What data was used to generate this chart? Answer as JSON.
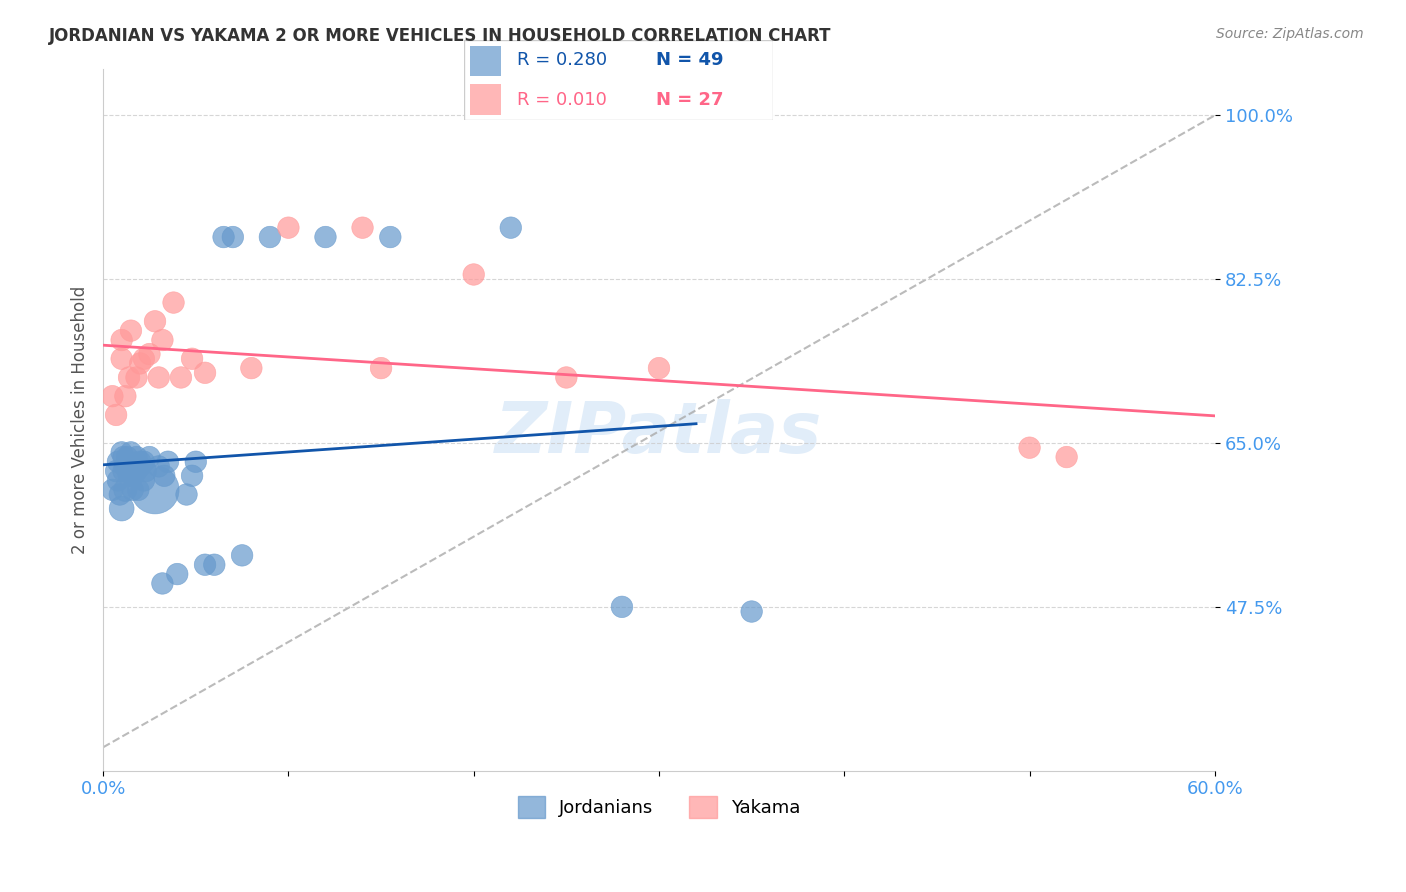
{
  "title": "JORDANIAN VS YAKAMA 2 OR MORE VEHICLES IN HOUSEHOLD CORRELATION CHART",
  "source": "Source: ZipAtlas.com",
  "ylabel": "2 or more Vehicles in Household",
  "xlim": [
    0.0,
    0.6
  ],
  "ylim": [
    0.3,
    1.05
  ],
  "yticks": [
    0.475,
    0.65,
    0.825,
    1.0
  ],
  "ytick_labels": [
    "47.5%",
    "65.0%",
    "82.5%",
    "100.0%"
  ],
  "xticks": [
    0.0,
    0.1,
    0.2,
    0.3,
    0.4,
    0.5,
    0.6
  ],
  "xtick_labels": [
    "0.0%",
    "",
    "",
    "",
    "",
    "",
    "60.0%"
  ],
  "legend_r_blue": "R = 0.280",
  "legend_n_blue": "N = 49",
  "legend_r_pink": "R = 0.010",
  "legend_n_pink": "N = 27",
  "blue_color": "#6699CC",
  "pink_color": "#FF9999",
  "blue_line_color": "#1155AA",
  "pink_line_color": "#FF6688",
  "axis_label_color": "#4499EE",
  "watermark": "ZIPatlas",
  "jordanians_x": [
    0.005,
    0.007,
    0.008,
    0.008,
    0.009,
    0.01,
    0.01,
    0.011,
    0.011,
    0.012,
    0.012,
    0.013,
    0.013,
    0.014,
    0.014,
    0.015,
    0.015,
    0.016,
    0.016,
    0.017,
    0.018,
    0.018,
    0.019,
    0.02,
    0.02,
    0.022,
    0.022,
    0.023,
    0.025,
    0.028,
    0.03,
    0.032,
    0.033,
    0.035,
    0.04,
    0.045,
    0.048,
    0.05,
    0.055,
    0.06,
    0.065,
    0.07,
    0.075,
    0.09,
    0.12,
    0.155,
    0.22,
    0.28,
    0.35
  ],
  "jordanians_y": [
    0.6,
    0.62,
    0.63,
    0.61,
    0.595,
    0.64,
    0.58,
    0.635,
    0.62,
    0.625,
    0.6,
    0.625,
    0.635,
    0.63,
    0.615,
    0.62,
    0.64,
    0.6,
    0.615,
    0.62,
    0.635,
    0.62,
    0.6,
    0.625,
    0.63,
    0.63,
    0.61,
    0.62,
    0.635,
    0.6,
    0.625,
    0.5,
    0.615,
    0.63,
    0.51,
    0.595,
    0.615,
    0.63,
    0.52,
    0.52,
    0.87,
    0.87,
    0.53,
    0.87,
    0.87,
    0.87,
    0.88,
    0.475,
    0.47
  ],
  "jordanians_size": [
    30,
    30,
    30,
    30,
    30,
    30,
    40,
    30,
    30,
    30,
    35,
    30,
    30,
    30,
    30,
    30,
    30,
    30,
    30,
    30,
    30,
    30,
    30,
    30,
    30,
    30,
    30,
    30,
    30,
    150,
    30,
    30,
    30,
    30,
    30,
    30,
    30,
    30,
    30,
    30,
    30,
    30,
    30,
    30,
    30,
    30,
    30,
    30,
    30
  ],
  "yakama_x": [
    0.005,
    0.007,
    0.01,
    0.01,
    0.012,
    0.014,
    0.015,
    0.018,
    0.02,
    0.022,
    0.025,
    0.028,
    0.03,
    0.032,
    0.038,
    0.042,
    0.048,
    0.055,
    0.08,
    0.1,
    0.14,
    0.15,
    0.2,
    0.25,
    0.3,
    0.5,
    0.52
  ],
  "yakama_y": [
    0.7,
    0.68,
    0.76,
    0.74,
    0.7,
    0.72,
    0.77,
    0.72,
    0.735,
    0.74,
    0.745,
    0.78,
    0.72,
    0.76,
    0.8,
    0.72,
    0.74,
    0.725,
    0.73,
    0.88,
    0.88,
    0.73,
    0.83,
    0.72,
    0.73,
    0.645,
    0.635
  ],
  "yakama_size": [
    30,
    30,
    30,
    30,
    30,
    30,
    30,
    30,
    30,
    30,
    30,
    30,
    30,
    30,
    30,
    30,
    30,
    30,
    30,
    30,
    30,
    30,
    30,
    30,
    30,
    30,
    30
  ]
}
